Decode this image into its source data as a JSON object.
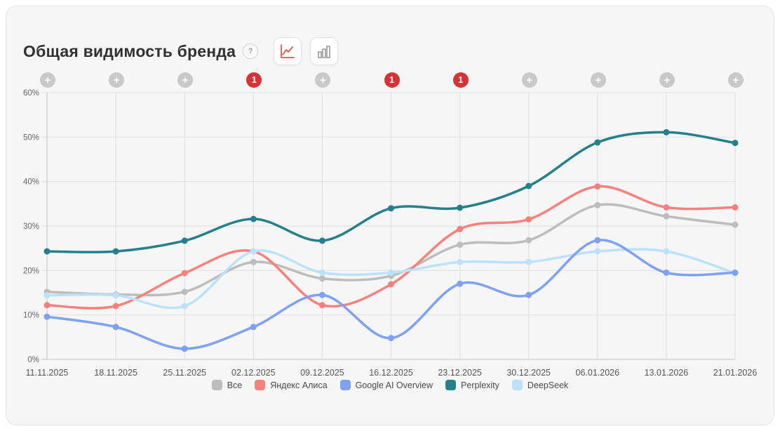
{
  "header": {
    "title": "Общая видимость бренда",
    "help_icon": "?"
  },
  "icons": {
    "plus": "+"
  },
  "colors": {
    "card_bg": "#f6f6f6",
    "card_border": "#e4e4e4",
    "grid": "#e2e2e2",
    "axis": "#cccccc",
    "tick_text": "#666666",
    "date_text": "#555555",
    "marker_gray": "#c9c9c9",
    "marker_red": "#d63336",
    "line_icon_active": "#e05252",
    "bar_icon_inactive": "#9a9a9a"
  },
  "markers": [
    {
      "type": "plus"
    },
    {
      "type": "plus"
    },
    {
      "type": "plus"
    },
    {
      "type": "event",
      "label": "1"
    },
    {
      "type": "plus"
    },
    {
      "type": "event",
      "label": "1"
    },
    {
      "type": "event",
      "label": "1"
    },
    {
      "type": "plus"
    },
    {
      "type": "plus"
    },
    {
      "type": "plus"
    },
    {
      "type": "plus"
    }
  ],
  "chart_data": {
    "type": "line",
    "title": "Общая видимость бренда",
    "x": [
      "11.11.2025",
      "18.11.2025",
      "25.11.2025",
      "02.12.2025",
      "09.12.2025",
      "16.12.2025",
      "23.12.2025",
      "30.12.2025",
      "06.01.2026",
      "13.01.2026",
      "21.01.2026"
    ],
    "yticks": [
      0,
      10,
      20,
      30,
      40,
      50,
      60
    ],
    "ytick_suffix": "%",
    "ylim": [
      0,
      60
    ],
    "grid": true,
    "legend_position": "bottom",
    "series": [
      {
        "name": "Все",
        "color": "#bdbdbd",
        "values": [
          15.2,
          14.6,
          15.2,
          21.9,
          18.2,
          18.8,
          25.8,
          26.8,
          34.7,
          32.2,
          30.3
        ]
      },
      {
        "name": "Яндекс Алиса",
        "color": "#f8807d",
        "values": [
          12.2,
          12.0,
          19.4,
          24.3,
          12.2,
          16.9,
          29.3,
          31.5,
          38.9,
          34.2,
          34.2
        ]
      },
      {
        "name": "DeepSeek",
        "color": "#bce2fa",
        "values": [
          14.4,
          14.4,
          12.0,
          24.3,
          19.5,
          19.5,
          21.9,
          21.9,
          24.3,
          24.3,
          19.4
        ]
      },
      {
        "name": "Google AI Overview",
        "color": "#7ea1f4",
        "values": [
          9.6,
          7.3,
          2.4,
          7.3,
          14.5,
          4.8,
          17.0,
          14.5,
          26.8,
          19.5,
          19.5
        ]
      },
      {
        "name": "Perplexity",
        "color": "#26808a",
        "values": [
          24.3,
          24.3,
          26.7,
          31.6,
          26.7,
          34.0,
          34.1,
          39.0,
          48.8,
          51.1,
          48.7
        ]
      }
    ],
    "legend_order": [
      "Все",
      "Яндекс Алиса",
      "Google AI Overview",
      "Perplexity",
      "DeepSeek"
    ]
  }
}
